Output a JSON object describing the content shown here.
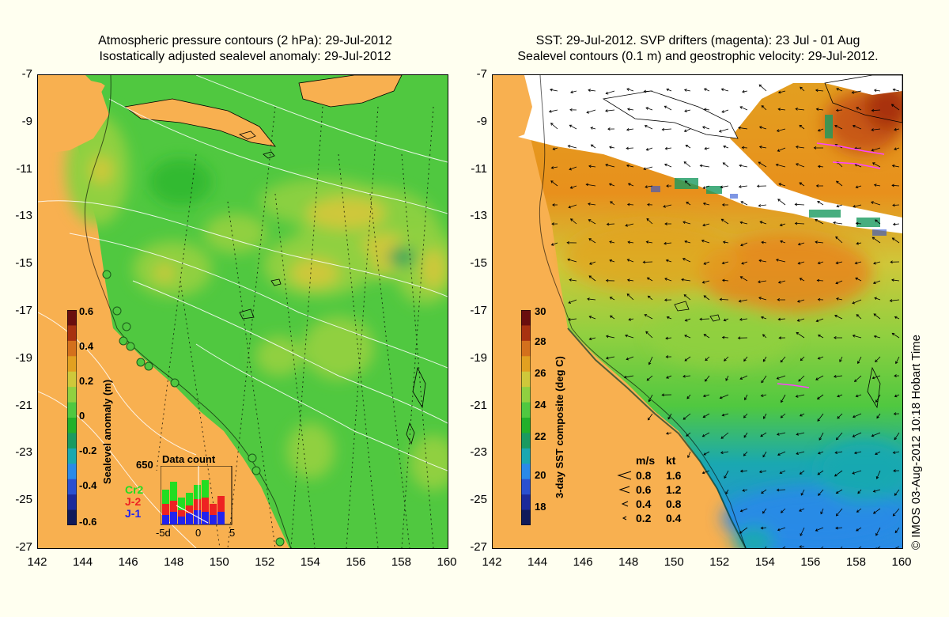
{
  "left_panel": {
    "title_line1": "Atmospheric pressure contours (2 hPa): 29-Jul-2012",
    "title_line2": "Isostatically adjusted sealevel anomaly: 29-Jul-2012",
    "colorbar_label": "Sealevel anomaly (m)",
    "colorbar_ticks": [
      "0.6",
      "0.4",
      "0.2",
      "0",
      "-0.2",
      "-0.4",
      "-0.6"
    ],
    "colorbar_colors": [
      "#6a0e0e",
      "#a83210",
      "#d4701c",
      "#e2a020",
      "#cfc83a",
      "#90d040",
      "#50c840",
      "#22b02a",
      "#1a9a60",
      "#1aa8b0",
      "#2a8ae8",
      "#2a50d0",
      "#1c2a9a",
      "#101a5a"
    ],
    "inset": {
      "scale_value": "650",
      "title": "Data count",
      "series": [
        "Cr2",
        "J-2",
        "J-1"
      ],
      "series_colors": [
        "#22dd22",
        "#ee2222",
        "#2222ee"
      ],
      "x_ticks": [
        "-5d",
        "0",
        "5"
      ]
    }
  },
  "right_panel": {
    "title_line1": "SST: 29-Jul-2012. SVP drifters (magenta): 23 Jul - 01 Aug",
    "title_line2": "Sealevel contours (0.1 m) and geostrophic velocity: 29-Jul-2012.",
    "colorbar_label": "3-day SST composite (deg C)",
    "colorbar_ticks": [
      "30",
      "28",
      "26",
      "24",
      "22",
      "20",
      "18"
    ],
    "colorbar_colors": [
      "#6a0e0e",
      "#a83210",
      "#d4701c",
      "#e2a020",
      "#cfc83a",
      "#90d040",
      "#50c840",
      "#22b02a",
      "#1a9a60",
      "#1aa8b0",
      "#2a8ae8",
      "#2a50d0",
      "#1c2a9a",
      "#101a5a"
    ],
    "velocity_legend": {
      "header_ms": "m/s",
      "header_kt": "kt",
      "rows": [
        {
          "ms": "0.8",
          "kt": "1.6"
        },
        {
          "ms": "0.6",
          "kt": "1.2"
        },
        {
          "ms": "0.4",
          "kt": "0.8"
        },
        {
          "ms": "0.2",
          "kt": "0.4"
        }
      ]
    }
  },
  "axes": {
    "lat_labels": [
      "-7",
      "-9",
      "-11",
      "-13",
      "-15",
      "-17",
      "-19",
      "-21",
      "-23",
      "-25",
      "-27"
    ],
    "lon_labels": [
      "142",
      "144",
      "146",
      "148",
      "150",
      "152",
      "154",
      "156",
      "158",
      "160"
    ],
    "lat_range": [
      -27,
      -7
    ],
    "lon_range": [
      142,
      160
    ]
  },
  "colors": {
    "land": "#f8b050",
    "background": "#fffff0",
    "drifters": "#ff44ff"
  },
  "copyright": "© IMOS 03-Aug-2012 10:18 Hobart Time"
}
